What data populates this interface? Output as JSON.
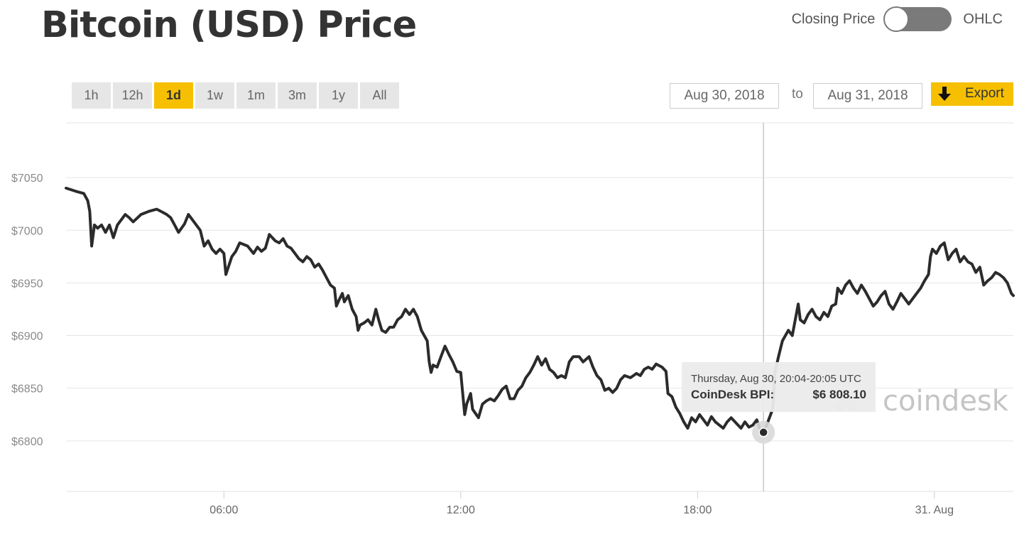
{
  "header": {
    "title": "Bitcoin (USD) Price",
    "toggle_left": "Closing Price",
    "toggle_right": "OHLC"
  },
  "ranges": [
    "1h",
    "12h",
    "1d",
    "1w",
    "1m",
    "3m",
    "1y",
    "All"
  ],
  "active_range": "1d",
  "date_from": "Aug 30, 2018",
  "date_to_label": "to",
  "date_to": "Aug 31, 2018",
  "export_label": "Export",
  "colors": {
    "accent": "#f6c000",
    "line": "#2b2b2b",
    "grid": "#e6e6e6"
  },
  "watermark": "coindesk",
  "chart_data": {
    "type": "line",
    "y_tick_labels": [
      "$7050",
      "$7000",
      "$6950",
      "$6900",
      "$6850",
      "$6800"
    ],
    "y_ticks": [
      7050,
      7000,
      6950,
      6900,
      6850,
      6800
    ],
    "ylim": [
      6752,
      7102
    ],
    "x_tick_labels": [
      "06:00",
      "12:00",
      "18:00",
      "31. Aug"
    ],
    "x_ticks": [
      6,
      12,
      18,
      24
    ],
    "xlim": [
      2,
      26
    ],
    "grid": true,
    "series": [
      {
        "points": [
          [
            2.0,
            7040
          ],
          [
            2.25,
            7037
          ],
          [
            2.45,
            7035
          ],
          [
            2.55,
            7028
          ],
          [
            2.6,
            7018
          ],
          [
            2.65,
            6985
          ],
          [
            2.72,
            7005
          ],
          [
            2.8,
            7002
          ],
          [
            2.9,
            7005
          ],
          [
            3.0,
            6998
          ],
          [
            3.1,
            7005
          ],
          [
            3.2,
            6993
          ],
          [
            3.3,
            7005
          ],
          [
            3.5,
            7015
          ],
          [
            3.6,
            7012
          ],
          [
            3.7,
            7008
          ],
          [
            3.9,
            7015
          ],
          [
            4.1,
            7018
          ],
          [
            4.3,
            7020
          ],
          [
            4.45,
            7017
          ],
          [
            4.55,
            7015
          ],
          [
            4.65,
            7012
          ],
          [
            4.75,
            7005
          ],
          [
            4.85,
            6998
          ],
          [
            5.0,
            7006
          ],
          [
            5.1,
            7015
          ],
          [
            5.2,
            7010
          ],
          [
            5.3,
            7005
          ],
          [
            5.4,
            7000
          ],
          [
            5.5,
            6985
          ],
          [
            5.6,
            6990
          ],
          [
            5.7,
            6982
          ],
          [
            5.8,
            6978
          ],
          [
            5.9,
            6982
          ],
          [
            6.0,
            6978
          ],
          [
            6.05,
            6958
          ],
          [
            6.12,
            6966
          ],
          [
            6.2,
            6975
          ],
          [
            6.3,
            6980
          ],
          [
            6.4,
            6988
          ],
          [
            6.6,
            6985
          ],
          [
            6.75,
            6978
          ],
          [
            6.85,
            6984
          ],
          [
            6.95,
            6980
          ],
          [
            7.05,
            6983
          ],
          [
            7.15,
            6996
          ],
          [
            7.3,
            6990
          ],
          [
            7.4,
            6988
          ],
          [
            7.5,
            6992
          ],
          [
            7.6,
            6985
          ],
          [
            7.7,
            6983
          ],
          [
            7.8,
            6978
          ],
          [
            7.9,
            6973
          ],
          [
            8.0,
            6970
          ],
          [
            8.1,
            6975
          ],
          [
            8.2,
            6972
          ],
          [
            8.3,
            6965
          ],
          [
            8.4,
            6968
          ],
          [
            8.5,
            6962
          ],
          [
            8.6,
            6955
          ],
          [
            8.7,
            6948
          ],
          [
            8.8,
            6945
          ],
          [
            8.85,
            6928
          ],
          [
            8.92,
            6934
          ],
          [
            9.0,
            6940
          ],
          [
            9.05,
            6932
          ],
          [
            9.15,
            6938
          ],
          [
            9.25,
            6925
          ],
          [
            9.35,
            6918
          ],
          [
            9.4,
            6905
          ],
          [
            9.45,
            6910
          ],
          [
            9.55,
            6912
          ],
          [
            9.65,
            6915
          ],
          [
            9.75,
            6910
          ],
          [
            9.85,
            6925
          ],
          [
            9.92,
            6915
          ],
          [
            10.0,
            6905
          ],
          [
            10.1,
            6903
          ],
          [
            10.2,
            6908
          ],
          [
            10.3,
            6908
          ],
          [
            10.4,
            6915
          ],
          [
            10.5,
            6918
          ],
          [
            10.6,
            6925
          ],
          [
            10.7,
            6920
          ],
          [
            10.8,
            6925
          ],
          [
            10.9,
            6918
          ],
          [
            11.0,
            6905
          ],
          [
            11.15,
            6895
          ],
          [
            11.2,
            6875
          ],
          [
            11.25,
            6865
          ],
          [
            11.3,
            6872
          ],
          [
            11.4,
            6870
          ],
          [
            11.5,
            6880
          ],
          [
            11.6,
            6890
          ],
          [
            11.7,
            6882
          ],
          [
            11.8,
            6875
          ],
          [
            11.9,
            6866
          ],
          [
            12.0,
            6865
          ],
          [
            12.05,
            6845
          ],
          [
            12.1,
            6825
          ],
          [
            12.15,
            6835
          ],
          [
            12.25,
            6845
          ],
          [
            12.3,
            6830
          ],
          [
            12.45,
            6822
          ],
          [
            12.55,
            6835
          ],
          [
            12.65,
            6838
          ],
          [
            12.75,
            6840
          ],
          [
            12.85,
            6838
          ],
          [
            12.95,
            6843
          ],
          [
            13.05,
            6849
          ],
          [
            13.15,
            6852
          ],
          [
            13.25,
            6840
          ],
          [
            13.35,
            6840
          ],
          [
            13.45,
            6848
          ],
          [
            13.55,
            6852
          ],
          [
            13.65,
            6860
          ],
          [
            13.75,
            6865
          ],
          [
            13.85,
            6872
          ],
          [
            13.95,
            6880
          ],
          [
            14.05,
            6872
          ],
          [
            14.15,
            6878
          ],
          [
            14.25,
            6868
          ],
          [
            14.35,
            6865
          ],
          [
            14.45,
            6860
          ],
          [
            14.55,
            6862
          ],
          [
            14.65,
            6860
          ],
          [
            14.75,
            6875
          ],
          [
            14.85,
            6880
          ],
          [
            15.0,
            6880
          ],
          [
            15.1,
            6875
          ],
          [
            15.25,
            6880
          ],
          [
            15.35,
            6870
          ],
          [
            15.45,
            6862
          ],
          [
            15.55,
            6858
          ],
          [
            15.65,
            6848
          ],
          [
            15.75,
            6850
          ],
          [
            15.85,
            6846
          ],
          [
            15.95,
            6850
          ],
          [
            16.05,
            6858
          ],
          [
            16.15,
            6862
          ],
          [
            16.3,
            6860
          ],
          [
            16.45,
            6864
          ],
          [
            16.55,
            6862
          ],
          [
            16.65,
            6868
          ],
          [
            16.75,
            6870
          ],
          [
            16.85,
            6868
          ],
          [
            16.95,
            6873
          ],
          [
            17.1,
            6870
          ],
          [
            17.2,
            6866
          ],
          [
            17.25,
            6845
          ],
          [
            17.35,
            6842
          ],
          [
            17.45,
            6832
          ],
          [
            17.55,
            6826
          ],
          [
            17.65,
            6818
          ],
          [
            17.75,
            6812
          ],
          [
            17.85,
            6822
          ],
          [
            17.95,
            6818
          ],
          [
            18.05,
            6825
          ],
          [
            18.15,
            6820
          ],
          [
            18.25,
            6815
          ],
          [
            18.35,
            6823
          ],
          [
            18.45,
            6818
          ],
          [
            18.55,
            6815
          ],
          [
            18.65,
            6812
          ],
          [
            18.75,
            6818
          ],
          [
            18.85,
            6822
          ],
          [
            19.0,
            6816
          ],
          [
            19.1,
            6812
          ],
          [
            19.2,
            6818
          ],
          [
            19.3,
            6813
          ],
          [
            19.4,
            6815
          ],
          [
            19.5,
            6820
          ],
          [
            19.58,
            6811
          ],
          [
            19.67,
            6808
          ],
          [
            19.75,
            6815
          ],
          [
            19.85,
            6825
          ],
          [
            19.9,
            6830
          ],
          [
            19.93,
            6845
          ],
          [
            19.96,
            6865
          ],
          [
            20.05,
            6880
          ],
          [
            20.15,
            6895
          ],
          [
            20.3,
            6905
          ],
          [
            20.4,
            6900
          ],
          [
            20.5,
            6920
          ],
          [
            20.55,
            6930
          ],
          [
            20.6,
            6915
          ],
          [
            20.7,
            6912
          ],
          [
            20.8,
            6920
          ],
          [
            20.9,
            6925
          ],
          [
            21.0,
            6918
          ],
          [
            21.1,
            6915
          ],
          [
            21.2,
            6922
          ],
          [
            21.3,
            6918
          ],
          [
            21.4,
            6928
          ],
          [
            21.5,
            6930
          ],
          [
            21.55,
            6945
          ],
          [
            21.65,
            6940
          ],
          [
            21.75,
            6948
          ],
          [
            21.85,
            6952
          ],
          [
            21.95,
            6945
          ],
          [
            22.05,
            6940
          ],
          [
            22.15,
            6948
          ],
          [
            22.25,
            6942
          ],
          [
            22.35,
            6935
          ],
          [
            22.45,
            6928
          ],
          [
            22.55,
            6932
          ],
          [
            22.65,
            6938
          ],
          [
            22.75,
            6942
          ],
          [
            22.85,
            6930
          ],
          [
            22.95,
            6925
          ],
          [
            23.05,
            6932
          ],
          [
            23.15,
            6940
          ],
          [
            23.25,
            6935
          ],
          [
            23.35,
            6930
          ],
          [
            23.45,
            6935
          ],
          [
            23.55,
            6940
          ],
          [
            23.65,
            6945
          ],
          [
            23.75,
            6952
          ],
          [
            23.85,
            6958
          ],
          [
            23.9,
            6975
          ],
          [
            23.95,
            6982
          ],
          [
            24.05,
            6978
          ],
          [
            24.15,
            6985
          ],
          [
            24.25,
            6988
          ],
          [
            24.35,
            6972
          ],
          [
            24.45,
            6978
          ],
          [
            24.55,
            6982
          ],
          [
            24.65,
            6970
          ],
          [
            24.75,
            6975
          ],
          [
            24.85,
            6970
          ],
          [
            24.95,
            6968
          ],
          [
            25.05,
            6960
          ],
          [
            25.15,
            6965
          ],
          [
            25.25,
            6948
          ],
          [
            25.35,
            6952
          ],
          [
            25.45,
            6955
          ],
          [
            25.55,
            6960
          ],
          [
            25.65,
            6958
          ],
          [
            25.75,
            6955
          ],
          [
            25.85,
            6950
          ],
          [
            25.95,
            6940
          ],
          [
            26.0,
            6938
          ]
        ]
      }
    ],
    "tooltip": {
      "time": "Thursday, Aug 30, 20:04-20:05 UTC",
      "label": "CoinDesk BPI:",
      "value": "$6 808.10",
      "x": 19.67,
      "y": 6808.1
    }
  }
}
